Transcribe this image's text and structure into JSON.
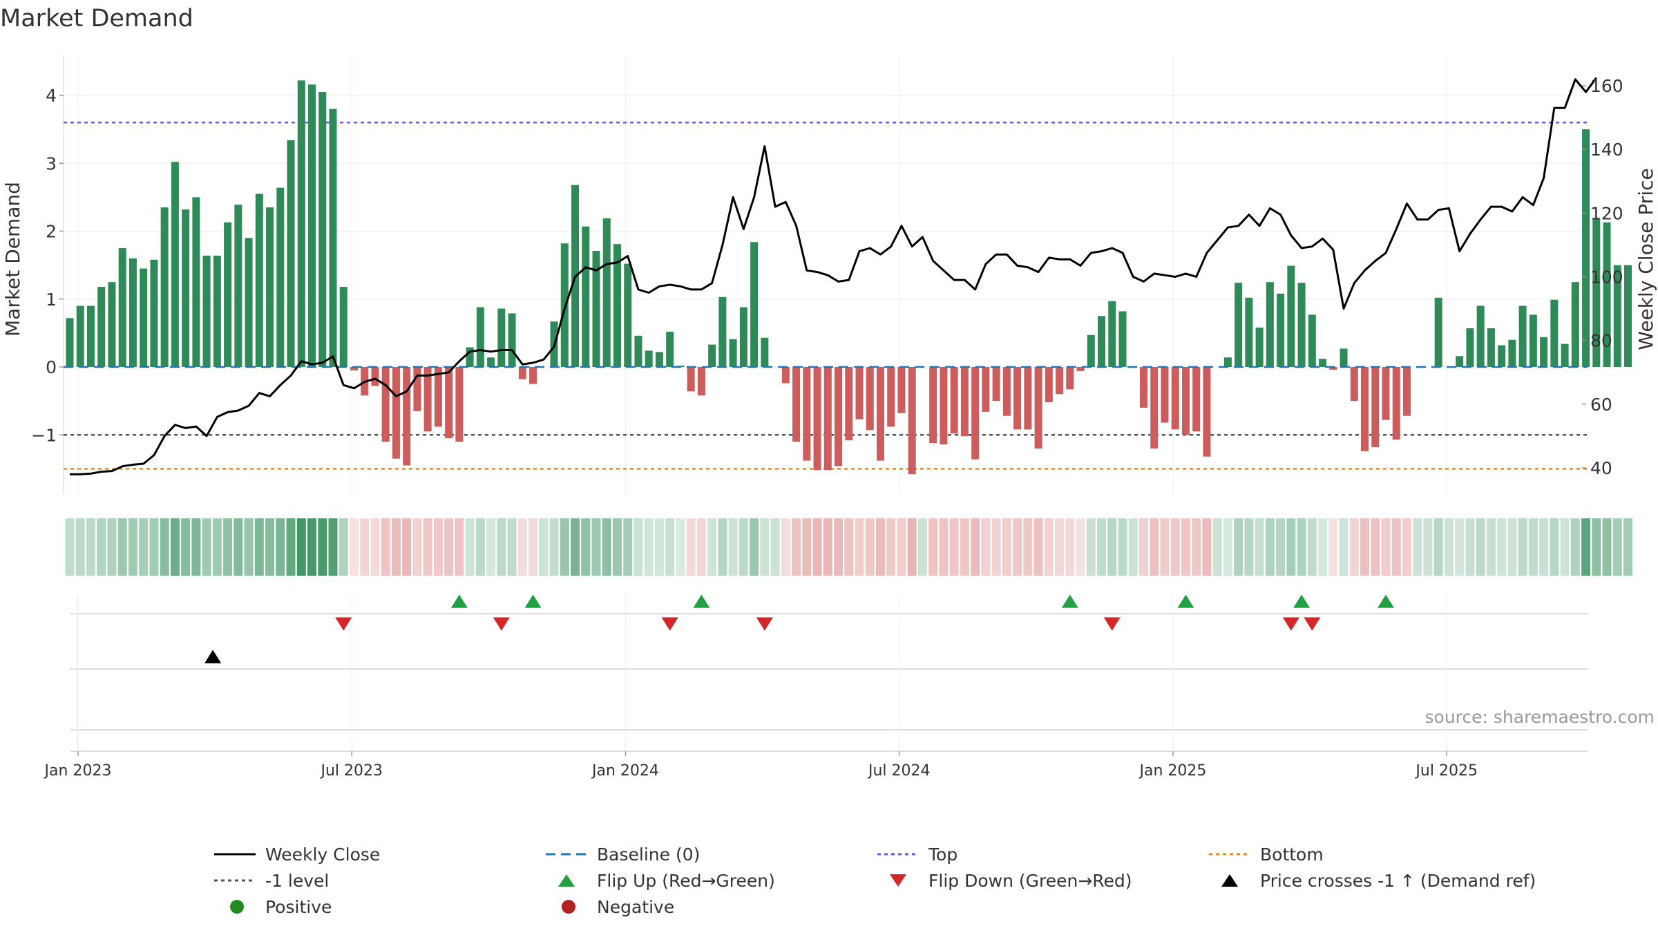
{
  "chart_data": {
    "type": "bar",
    "title": "Market Demand",
    "ylabel_left": "Market Demand",
    "ylabel_right": "Weekly Close Price",
    "source": "source: sharemaestro.com",
    "ylim_left": [
      -1.9,
      4.5
    ],
    "ylim_right": [
      32,
      165
    ],
    "y_ticks_left": [
      4,
      3,
      2,
      1,
      0,
      -1
    ],
    "y_tick_labels_left": [
      "4",
      "3",
      "2",
      "1",
      "0",
      "−1"
    ],
    "y_ticks_right": [
      160,
      140,
      120,
      100,
      80,
      60,
      40
    ],
    "y_tick_labels_right": [
      "160",
      "140",
      "120",
      "100",
      "80",
      "60",
      "40"
    ],
    "x_ticks": [
      1,
      27,
      53,
      79,
      105,
      131
    ],
    "x_tick_labels": [
      "Jan 2023",
      "Jul 2023",
      "Jan 2024",
      "Jul 2024",
      "Jan 2025",
      "Jul 2025"
    ],
    "reference_lines": {
      "top": 3.6,
      "bottom": -1.5,
      "minus_one": -1.0,
      "baseline": 0
    },
    "demand": [
      0.72,
      0.9,
      0.9,
      1.18,
      1.25,
      1.75,
      1.6,
      1.45,
      1.58,
      2.35,
      3.02,
      2.32,
      2.5,
      1.64,
      1.64,
      2.13,
      2.39,
      1.9,
      2.55,
      2.35,
      2.64,
      3.34,
      4.22,
      4.16,
      4.05,
      3.8,
      1.18,
      -0.05,
      -0.42,
      -0.28,
      -1.1,
      -1.35,
      -1.45,
      -0.65,
      -0.95,
      -0.88,
      -1.05,
      -1.1,
      0.29,
      0.88,
      0.14,
      0.86,
      0.79,
      -0.18,
      -0.25,
      0.0,
      0.67,
      1.82,
      2.68,
      2.07,
      1.71,
      2.19,
      1.81,
      1.52,
      0.46,
      0.24,
      0.22,
      0.52,
      0.02,
      -0.36,
      -0.42,
      0.33,
      1.03,
      0.41,
      0.88,
      1.84,
      0.43,
      0.0,
      -0.24,
      -1.1,
      -1.38,
      -1.52,
      -1.52,
      -1.46,
      -1.08,
      -0.77,
      -0.93,
      -1.38,
      -0.88,
      -0.68,
      -1.58,
      0.0,
      -1.12,
      -1.14,
      -0.98,
      -1.02,
      -1.36,
      -0.66,
      -0.5,
      -0.72,
      -0.92,
      -0.92,
      -1.2,
      -0.52,
      -0.4,
      -0.33,
      -0.06,
      0.47,
      0.75,
      0.97,
      0.82,
      0.0,
      -0.6,
      -1.2,
      -0.82,
      -0.92,
      -1.0,
      -0.95,
      -1.32,
      0.0,
      0.14,
      1.24,
      1.02,
      0.58,
      1.25,
      1.08,
      1.49,
      1.24,
      0.77,
      0.12,
      -0.04,
      0.27,
      -0.5,
      -1.24,
      -1.18,
      -0.78,
      -1.07,
      -0.72,
      0.0,
      0.0,
      1.02,
      0.0,
      0.16,
      0.57,
      0.9,
      0.57,
      0.32,
      0.4,
      0.9,
      0.77,
      0.44,
      0.99,
      0.34,
      1.25,
      3.5,
      2.19,
      2.13,
      1.5,
      1.5
    ],
    "close": [
      38.0,
      38.0,
      38.2,
      38.8,
      39.0,
      40.5,
      41.0,
      41.3,
      44.0,
      50.0,
      53.5,
      52.5,
      53.0,
      50.0,
      56.0,
      57.5,
      58.0,
      59.5,
      63.5,
      62.5,
      66.0,
      69.0,
      73.5,
      72.5,
      73.0,
      75.0,
      66.0,
      65.0,
      67.0,
      68.0,
      66.0,
      62.5,
      64.0,
      69.0,
      69.0,
      69.5,
      70.0,
      73.5,
      76.5,
      77.0,
      76.5,
      77.0,
      77.0,
      72.5,
      73.0,
      74.0,
      78.0,
      90.0,
      100.0,
      103.0,
      102.0,
      104.0,
      104.5,
      106.5,
      96.0,
      95.0,
      97.0,
      97.5,
      97.0,
      96.0,
      96.0,
      98.0,
      110.0,
      125.0,
      115.0,
      125.0,
      141.0,
      122.0,
      123.5,
      116.0,
      102.0,
      101.5,
      100.5,
      98.5,
      99.0,
      108.0,
      109.0,
      107.0,
      109.5,
      116.0,
      109.5,
      112.5,
      105.0,
      102.0,
      99.0,
      99.0,
      96.0,
      104.0,
      107.0,
      107.0,
      103.5,
      103.0,
      101.5,
      106.0,
      105.5,
      105.5,
      103.5,
      107.5,
      108.0,
      109.0,
      107.5,
      100.0,
      98.5,
      101.0,
      100.5,
      100.0,
      101.0,
      100.0,
      107.5,
      111.5,
      115.5,
      116.0,
      119.5,
      116.0,
      121.5,
      119.5,
      113.0,
      109.0,
      109.5,
      112.0,
      108.5,
      90.0,
      98.0,
      102.0,
      105.0,
      107.5,
      115.0,
      123.0,
      118.0,
      118.0,
      121.0,
      121.5,
      108.0,
      113.5,
      118.0,
      122.0,
      122.0,
      120.5,
      125.0,
      122.5,
      131.0,
      153.0,
      153.0,
      162.0,
      158.0,
      162.5
    ],
    "heat_strip": "demand intensity per week (green = positive, red = negative)",
    "flip_up_weeks": [
      38,
      45,
      61,
      96,
      107,
      118,
      126
    ],
    "flip_down_weeks": [
      27,
      42,
      58,
      67,
      100,
      117,
      119
    ],
    "price_cross_weeks": [
      14
    ],
    "colors": {
      "positive": "#2e8b57",
      "negative": "#cd5c5c",
      "line": "#000000",
      "baseline": "#1f77b4",
      "top": "#6a5acd",
      "bottom": "#e08a1e",
      "minus_one": "#555555",
      "flip_up": "#22a044",
      "flip_down": "#d62728",
      "cross": "#000000"
    },
    "legend": [
      {
        "label": "Weekly Close",
        "marker": "line"
      },
      {
        "label": "Baseline (0)",
        "marker": "dash-blue"
      },
      {
        "label": "Top",
        "marker": "dot-purple"
      },
      {
        "label": "Bottom",
        "marker": "dot-orange"
      },
      {
        "label": "-1 level",
        "marker": "dot-grey"
      },
      {
        "label": "Flip Up (Red→Green)",
        "marker": "tri-up-green"
      },
      {
        "label": "Flip Down (Green→Red)",
        "marker": "tri-down-red"
      },
      {
        "label": "Price crosses -1 ↑ (Demand ref)",
        "marker": "tri-up-black"
      },
      {
        "label": "Positive",
        "marker": "circle-green"
      },
      {
        "label": "Negative",
        "marker": "circle-red"
      }
    ]
  }
}
